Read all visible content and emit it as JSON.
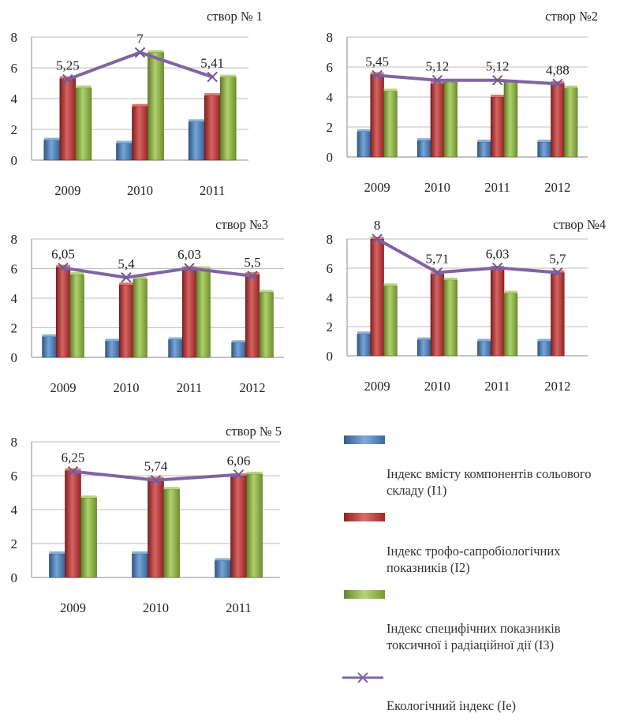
{
  "colors": {
    "I1": "#4a86c9",
    "I2": "#c8302e",
    "I3": "#94c13d",
    "Ie": "#8064a2"
  },
  "legend": [
    {
      "key": "I1",
      "text": "Індекс вмісту компонентів сольового\nскладу (І1)",
      "marker": "bar"
    },
    {
      "key": "I2",
      "text": "Індекс трофо-сапробіологічних\nпоказників (І2)",
      "marker": "bar"
    },
    {
      "key": "I3",
      "text": "Індекс специфічних показників\nтоксичної і радіаційної дії (І3)",
      "marker": "bar"
    },
    {
      "key": "Ie",
      "text": "Екологічний індекс (Іе)",
      "marker": "line"
    }
  ],
  "chart_data": [
    {
      "type": "bar",
      "title": "створ № 1",
      "categories": [
        "2009",
        "2010",
        "2011"
      ],
      "ylim": [
        0,
        8
      ],
      "yticks": [
        0,
        2,
        4,
        6,
        8
      ],
      "series": [
        {
          "name": "Індекс вмісту компонентів сольового складу (І1)",
          "key": "I1",
          "values": [
            1.3,
            1.1,
            2.5
          ]
        },
        {
          "name": "Індекс трофо-сапробіологічних показників (І2)",
          "key": "I2",
          "values": [
            5.3,
            3.5,
            4.2
          ]
        },
        {
          "name": "Індекс специфічних показників токсичної і радіаційної дії (І3)",
          "key": "I3",
          "values": [
            4.7,
            7.0,
            5.4
          ]
        }
      ],
      "line": {
        "name": "Екологічний індекс (Іе)",
        "key": "Ie",
        "values": [
          5.25,
          7,
          5.41
        ],
        "labels": [
          "5,25",
          "7",
          "5,41"
        ]
      }
    },
    {
      "type": "bar",
      "title": "створ №2",
      "categories": [
        "2009",
        "2010",
        "2011",
        "2012"
      ],
      "ylim": [
        0,
        8
      ],
      "yticks": [
        0,
        2,
        4,
        6,
        8
      ],
      "series": [
        {
          "name": "Індекс вмісту компонентів сольового складу (І1)",
          "key": "I1",
          "values": [
            1.7,
            1.1,
            1.0,
            1.0
          ]
        },
        {
          "name": "Індекс трофо-сапробіологічних показників (І2)",
          "key": "I2",
          "values": [
            5.5,
            4.9,
            4.0,
            4.9
          ]
        },
        {
          "name": "Індекс специфічних показників токсичної і радіаційної дії (І3)",
          "key": "I3",
          "values": [
            4.4,
            5.0,
            5.0,
            4.6
          ]
        }
      ],
      "line": {
        "name": "Екологічний індекс (Іе)",
        "key": "Ie",
        "values": [
          5.45,
          5.12,
          5.12,
          4.88
        ],
        "labels": [
          "5,45",
          "5,12",
          "5,12",
          "4,88"
        ]
      }
    },
    {
      "type": "bar",
      "title": "створ №3",
      "categories": [
        "2009",
        "2010",
        "2011",
        "2012"
      ],
      "ylim": [
        0,
        8
      ],
      "yticks": [
        0,
        2,
        4,
        6,
        8
      ],
      "series": [
        {
          "name": "Індекс вмісту компонентів сольового складу (І1)",
          "key": "I1",
          "values": [
            1.4,
            1.1,
            1.2,
            1.0
          ]
        },
        {
          "name": "Індекс трофо-сапробіологічних показників (І2)",
          "key": "I2",
          "values": [
            6.1,
            4.9,
            6.0,
            5.6
          ]
        },
        {
          "name": "Індекс специфічних показників токсичної і радіаційної дії (І3)",
          "key": "I3",
          "values": [
            5.6,
            5.3,
            6.0,
            4.4
          ]
        }
      ],
      "line": {
        "name": "Екологічний індекс (Іе)",
        "key": "Ie",
        "values": [
          6.05,
          5.4,
          6.03,
          5.5
        ],
        "labels": [
          "6,05",
          "5,4",
          "6,03",
          "5,5"
        ]
      }
    },
    {
      "type": "bar",
      "title": "створ №4",
      "categories": [
        "2009",
        "2010",
        "2011",
        "2012"
      ],
      "ylim": [
        0,
        8
      ],
      "yticks": [
        0,
        2,
        4,
        6,
        8
      ],
      "series": [
        {
          "name": "Індекс вмісту компонентів сольового складу (І1)",
          "key": "I1",
          "values": [
            1.5,
            1.1,
            1.0,
            1.0
          ]
        },
        {
          "name": "Індекс трофо-сапробіологічних показників (І2)",
          "key": "I2",
          "values": [
            8.0,
            5.6,
            6.0,
            5.7
          ]
        },
        {
          "name": "Індекс специфічних показників токсичної і радіаційної дії (І3)",
          "key": "I3",
          "values": [
            4.8,
            5.2,
            4.3,
            0
          ]
        }
      ],
      "line": {
        "name": "Екологічний індекс (Іе)",
        "key": "Ie",
        "values": [
          8,
          5.71,
          6.03,
          5.7
        ],
        "labels": [
          "8",
          "5,71",
          "6,03",
          "5,7"
        ]
      }
    },
    {
      "type": "bar",
      "title": "створ № 5",
      "categories": [
        "2009",
        "2010",
        "2011"
      ],
      "ylim": [
        0,
        8
      ],
      "yticks": [
        0,
        2,
        4,
        6,
        8
      ],
      "series": [
        {
          "name": "Індекс вмісту компонентів сольового складу (І1)",
          "key": "I1",
          "values": [
            1.4,
            1.4,
            1.0
          ]
        },
        {
          "name": "Індекс трофо-сапробіологічних показників (І2)",
          "key": "I2",
          "values": [
            6.3,
            5.8,
            6.0
          ]
        },
        {
          "name": "Індекс специфічних показників токсичної і радіаційної дії (І3)",
          "key": "I3",
          "values": [
            4.7,
            5.2,
            6.1
          ]
        }
      ],
      "line": {
        "name": "Екологічний індекс (Іе)",
        "key": "Ie",
        "values": [
          6.25,
          5.74,
          6.06
        ],
        "labels": [
          "6,25",
          "5,74",
          "6,06"
        ]
      }
    }
  ]
}
